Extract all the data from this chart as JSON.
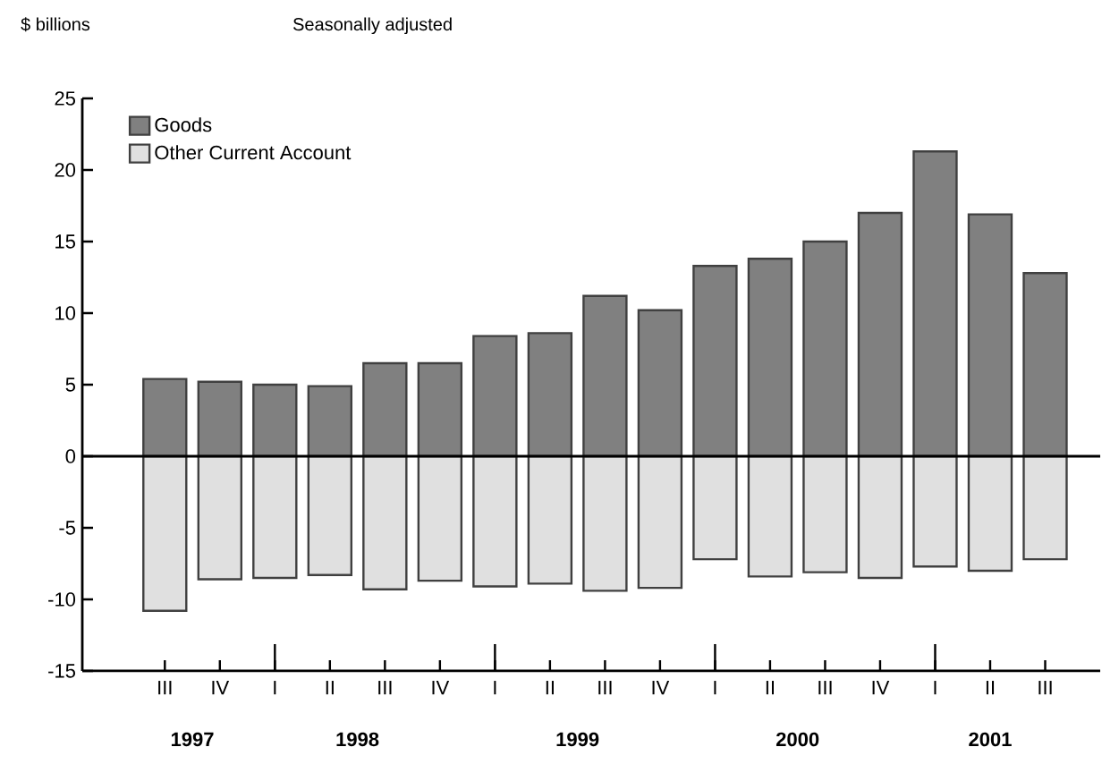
{
  "chart_data": {
    "type": "bar",
    "ylabel": "$ billions",
    "subtitle": "Seasonally adjusted",
    "categories": [
      "III",
      "IV",
      "I",
      "II",
      "III",
      "IV",
      "I",
      "II",
      "III",
      "IV",
      "I",
      "II",
      "III",
      "IV",
      "I",
      "II",
      "III"
    ],
    "series": [
      {
        "name": "Goods",
        "color": "#808080",
        "values": [
          5.4,
          5.2,
          5.0,
          4.9,
          6.5,
          6.5,
          8.4,
          8.6,
          11.2,
          10.2,
          13.3,
          13.8,
          15.0,
          17.0,
          21.3,
          16.9,
          12.8
        ]
      },
      {
        "name": "Other Current Account",
        "color": "#e0e0e0",
        "values": [
          -10.8,
          -8.6,
          -8.5,
          -8.3,
          -9.3,
          -8.7,
          -9.1,
          -8.9,
          -9.4,
          -9.2,
          -7.2,
          -8.4,
          -8.1,
          -8.5,
          -7.7,
          -8.0,
          -7.2
        ]
      }
    ],
    "stacked": true,
    "ylim": [
      -15,
      25
    ],
    "yticks": [
      -15,
      -10,
      -5,
      0,
      5,
      10,
      15,
      20,
      25
    ],
    "legend": "top left",
    "annotations": [
      "1997",
      "1998",
      "1999",
      "2000",
      "2001"
    ]
  }
}
